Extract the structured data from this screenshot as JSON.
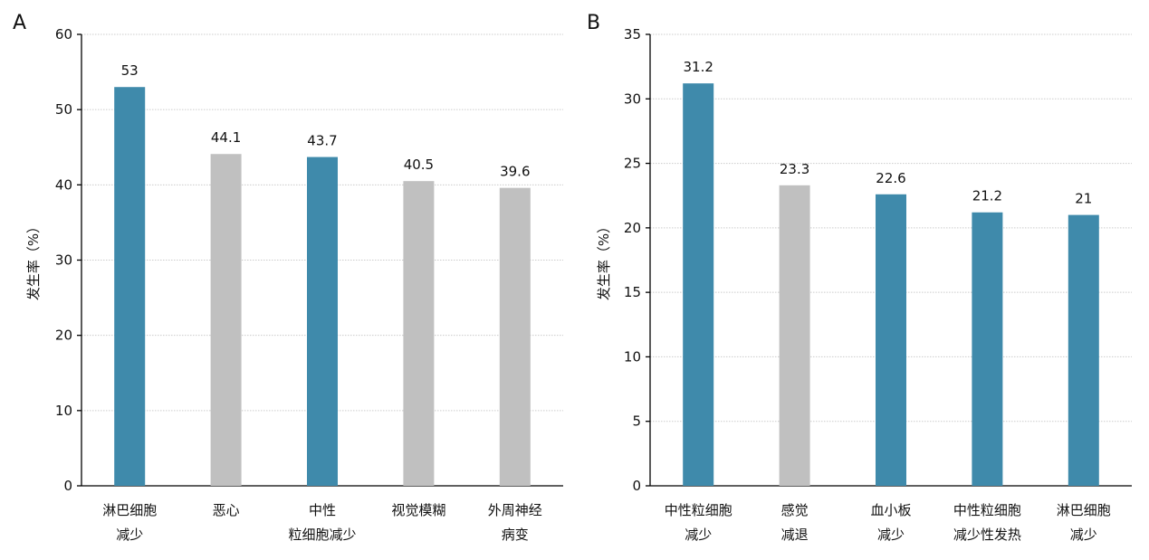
{
  "colors": {
    "highlight": "#3f8aab",
    "neutral": "#c0c0c0",
    "grid": "#cccccc",
    "axis": "#000000"
  },
  "chart_data": [
    {
      "type": "bar",
      "panel": "A",
      "ylabel": "发生率（%）",
      "xlabel": "",
      "ylim": [
        0,
        60
      ],
      "yticks": [
        0,
        10,
        20,
        30,
        40,
        50,
        60
      ],
      "grid": true,
      "categories": [
        [
          "淋巴细胞",
          "减少"
        ],
        [
          "恶心"
        ],
        [
          "中性",
          "粒细胞减少"
        ],
        [
          "视觉模糊"
        ],
        [
          "外周神经",
          "病变"
        ]
      ],
      "values": [
        53,
        44.1,
        43.7,
        40.5,
        39.6
      ],
      "value_labels": [
        "53",
        "44.1",
        "43.7",
        "40.5",
        "39.6"
      ],
      "bar_colors": [
        "highlight",
        "neutral",
        "highlight",
        "neutral",
        "neutral"
      ]
    },
    {
      "type": "bar",
      "panel": "B",
      "ylabel": "发生率（%）",
      "xlabel": "",
      "ylim": [
        0,
        35
      ],
      "yticks": [
        0,
        5,
        10,
        15,
        20,
        25,
        30,
        35
      ],
      "grid": true,
      "categories": [
        [
          "中性粒细胞",
          "减少"
        ],
        [
          "感觉",
          "减退"
        ],
        [
          "血小板",
          "减少"
        ],
        [
          "中性粒细胞",
          "减少性发热"
        ],
        [
          "淋巴细胞",
          "减少"
        ]
      ],
      "values": [
        31.2,
        23.3,
        22.6,
        21.2,
        21
      ],
      "value_labels": [
        "31.2",
        "23.3",
        "22.6",
        "21.2",
        "21"
      ],
      "bar_colors": [
        "highlight",
        "neutral",
        "highlight",
        "highlight",
        "highlight"
      ]
    }
  ]
}
